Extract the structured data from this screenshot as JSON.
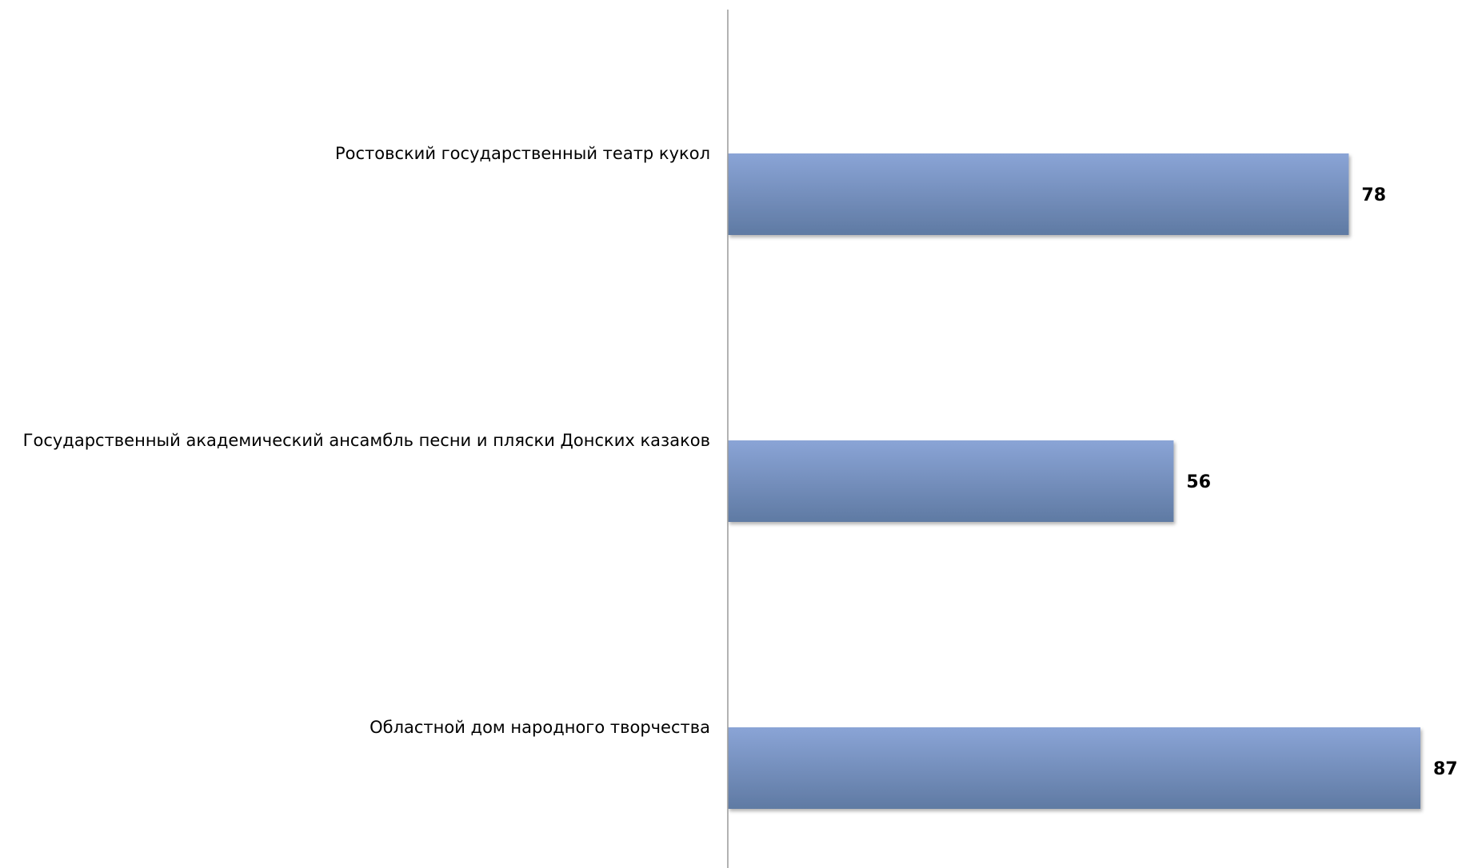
{
  "chart_data": {
    "type": "bar",
    "orientation": "horizontal",
    "categories": [
      "Ростовский государственный театр кукол",
      "Государственный академический ансамбль песни и пляски Донских казаков",
      "Областной дом народного творчества"
    ],
    "values": [
      78,
      56,
      87
    ],
    "data_labels": [
      "78",
      "56",
      "87"
    ],
    "title": "",
    "xlabel": "",
    "ylabel": "",
    "xlim": [
      0,
      87
    ],
    "grid": false,
    "legend": "none",
    "colors": {
      "bar_top": "#8AA4D6",
      "bar_bottom": "#5F7AA3",
      "axis": "#9a9a9a"
    }
  }
}
